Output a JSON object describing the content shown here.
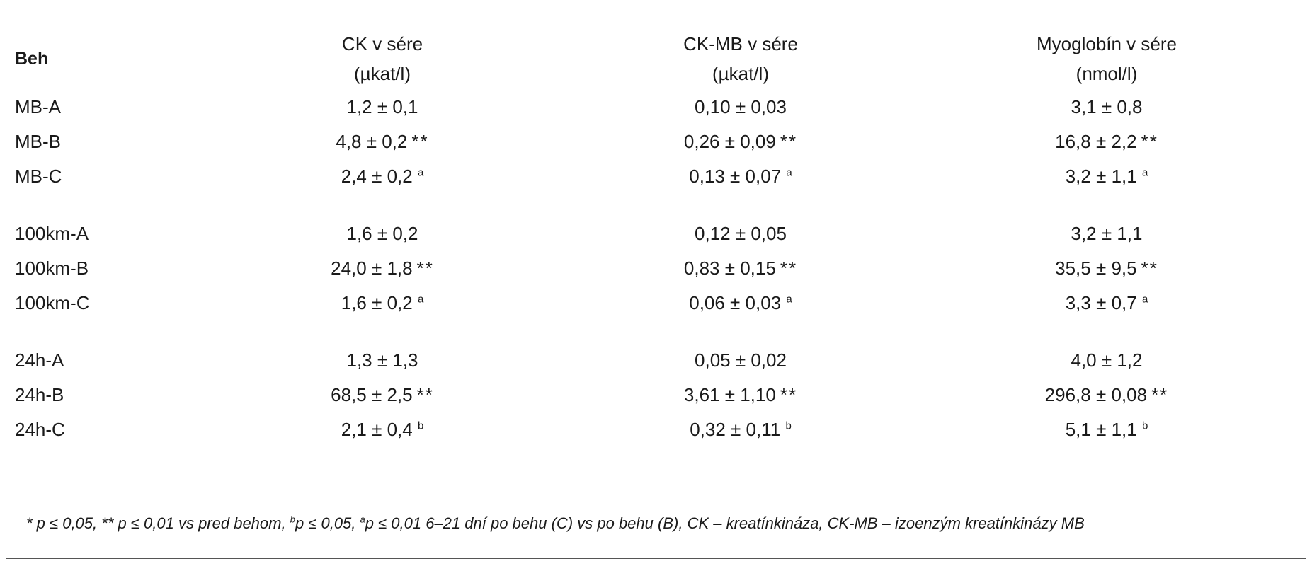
{
  "table": {
    "headers": [
      {
        "line1": "Beh",
        "line2": ""
      },
      {
        "line1": "CK v sére",
        "line2": "(µkat/l)"
      },
      {
        "line1": "CK-MB  v sére",
        "line2": "(µkat/l)"
      },
      {
        "line1": "Myoglobín v sére",
        "line2": "(nmol/l)"
      }
    ],
    "groups": [
      {
        "rows": [
          {
            "label": "MB-A",
            "cells": [
              {
                "value": "1,2 ± 0,1",
                "mark": ""
              },
              {
                "value": "0,10 ± 0,03",
                "mark": ""
              },
              {
                "value": "3,1 ± 0,8",
                "mark": ""
              }
            ]
          },
          {
            "label": "MB-B",
            "cells": [
              {
                "value": "4,8 ± 0,2",
                "mark": "**"
              },
              {
                "value": "0,26 ± 0,09",
                "mark": "**"
              },
              {
                "value": "16,8 ± 2,2",
                "mark": "**"
              }
            ]
          },
          {
            "label": "MB-C",
            "cells": [
              {
                "value": "2,4 ± 0,2",
                "sup": "a"
              },
              {
                "value": "0,13 ± 0,07",
                "sup": "a"
              },
              {
                "value": "3,2 ± 1,1",
                "sup": "a"
              }
            ]
          }
        ]
      },
      {
        "rows": [
          {
            "label": "100km-A",
            "cells": [
              {
                "value": "1,6 ± 0,2",
                "mark": ""
              },
              {
                "value": "0,12 ± 0,05",
                "mark": ""
              },
              {
                "value": "3,2 ± 1,1",
                "mark": ""
              }
            ]
          },
          {
            "label": "100km-B",
            "cells": [
              {
                "value": "24,0 ± 1,8",
                "mark": "**"
              },
              {
                "value": "0,83 ± 0,15",
                "mark": "**"
              },
              {
                "value": "35,5 ± 9,5",
                "mark": "**"
              }
            ]
          },
          {
            "label": "100km-C",
            "cells": [
              {
                "value": "1,6 ± 0,2",
                "sup": "a"
              },
              {
                "value": "0,06 ± 0,03",
                "sup": "a"
              },
              {
                "value": "3,3 ± 0,7",
                "sup": "a"
              }
            ]
          }
        ]
      },
      {
        "rows": [
          {
            "label": "24h-A",
            "cells": [
              {
                "value": "1,3 ± 1,3",
                "mark": ""
              },
              {
                "value": "0,05 ± 0,02",
                "mark": ""
              },
              {
                "value": "4,0 ± 1,2",
                "mark": ""
              }
            ]
          },
          {
            "label": "24h-B",
            "cells": [
              {
                "value": "68,5 ± 2,5",
                "mark": "**"
              },
              {
                "value": "3,61 ± 1,10",
                "mark": "**"
              },
              {
                "value": "296,8 ± 0,08",
                "mark": "**"
              }
            ]
          },
          {
            "label": "24h-C",
            "cells": [
              {
                "value": "2,1 ± 0,4",
                "sup": "b"
              },
              {
                "value": "0,32 ± 0,11",
                "sup": "b"
              },
              {
                "value": "5,1 ± 1,1",
                "sup": "b"
              }
            ]
          }
        ]
      }
    ]
  },
  "footnote": {
    "p1": "* p ≤ 0,05, ** p ≤ 0,01 vs pred behom, ",
    "sup_b": "b",
    "p2": "p ≤ 0,05, ",
    "sup_a": "a",
    "p3": "p ≤ 0,01 6–21 dní po behu (C) vs po behu (B), CK – kreatínkináza, CK-MB – izoenzým kreatínkinázy MB"
  }
}
